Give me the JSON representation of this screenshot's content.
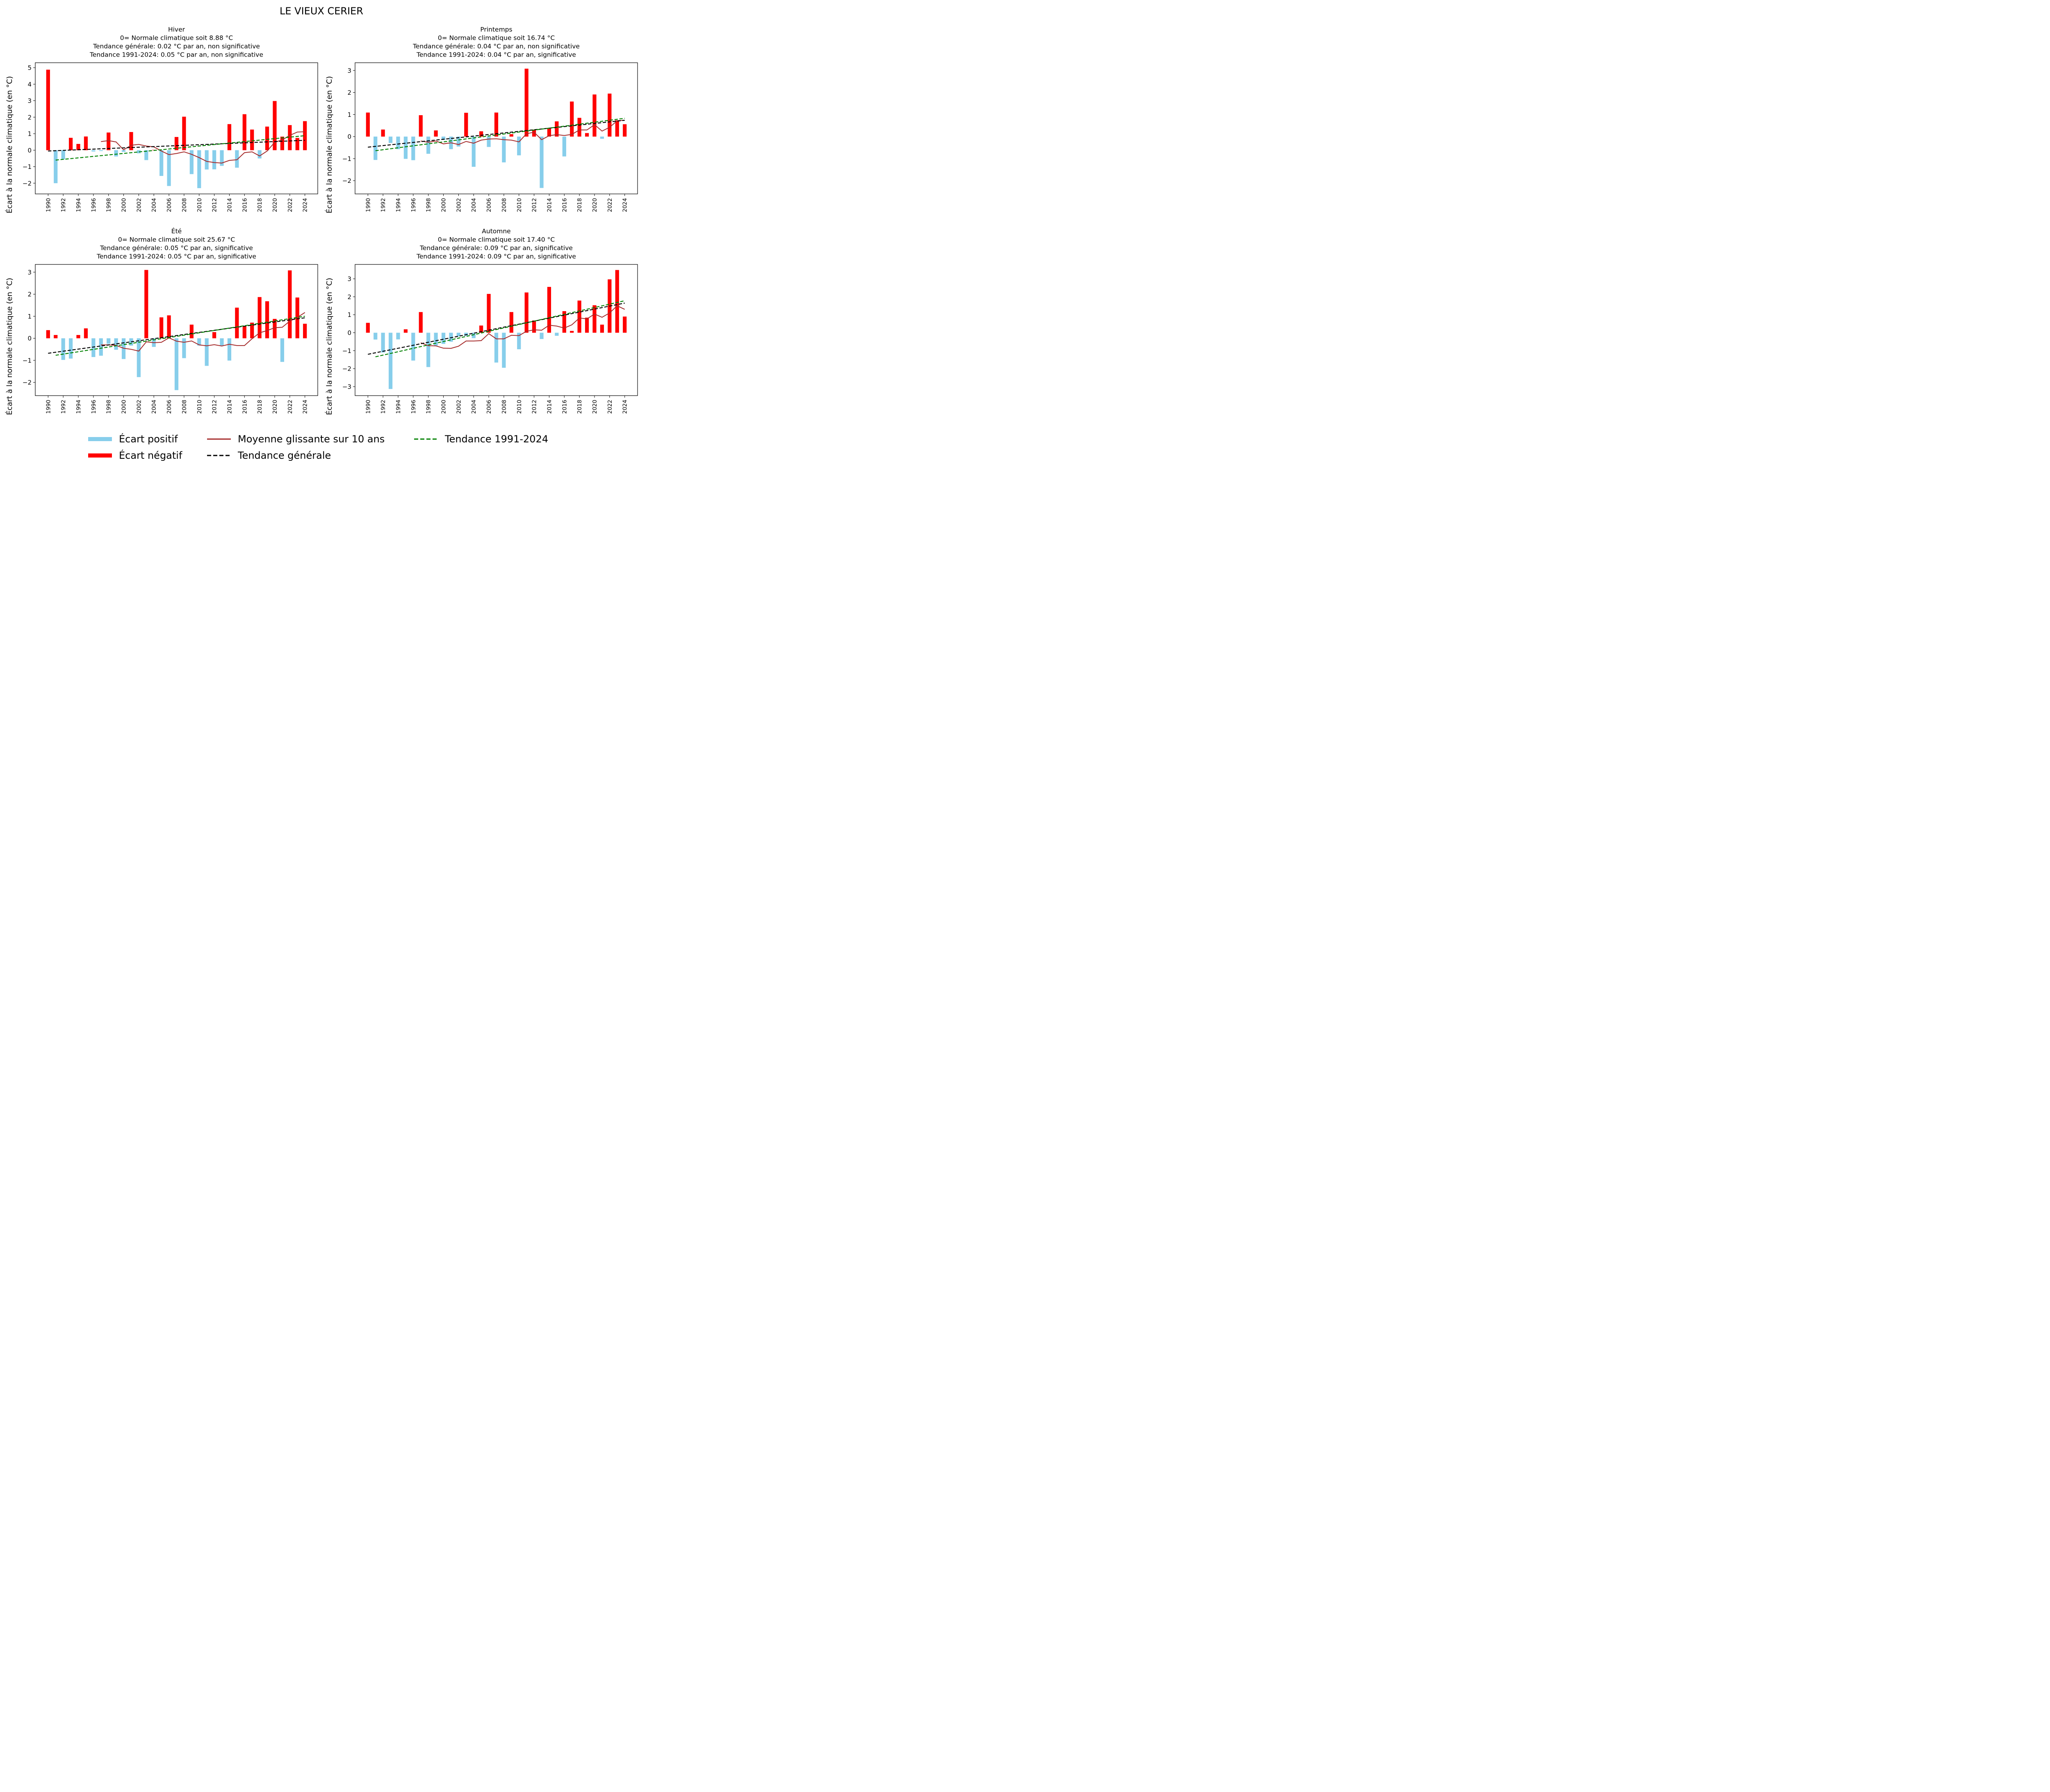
{
  "figure": {
    "suptitle": "LE VIEUX CERIER"
  },
  "colors": {
    "positive": "#87CEEB",
    "negative": "#FF0000",
    "moving_avg": "#A52A2A",
    "trend_general": "#000000",
    "trend_recent": "#008000"
  },
  "legend": {
    "items": [
      {
        "label": "Écart positif",
        "kind": "patch",
        "color": "#87CEEB"
      },
      {
        "label": "Écart négatif",
        "kind": "patch",
        "color": "#FF0000"
      },
      {
        "label": "Moyenne glissante sur 10 ans",
        "kind": "line",
        "color": "#A52A2A"
      },
      {
        "label": "Tendance générale",
        "kind": "dashed",
        "color": "#000000"
      },
      {
        "label": "Tendance 1991-2024",
        "kind": "dashed",
        "color": "#008000"
      }
    ],
    "placement": "bottom-center"
  },
  "chart_data": [
    {
      "type": "bar",
      "title": [
        "Hiver",
        "0= Normale climatique soit 8.88 °C",
        "Tendance générale: 0.02  °C par an, non significative",
        "Tendance 1991-2024: 0.05 °C par an, non significative"
      ],
      "xlabel": "",
      "ylabel": "Écart à la normale climatique (en °C)",
      "ylim": [
        -2.65,
        5.3
      ],
      "yticks": [
        -2,
        -1,
        0,
        1,
        2,
        3,
        4,
        5
      ],
      "xticks": [
        1990,
        1992,
        1994,
        1996,
        1998,
        2000,
        2002,
        2004,
        2006,
        2008,
        2010,
        2012,
        2014,
        2016,
        2018,
        2020,
        2022,
        2024
      ],
      "years": [
        1990,
        1991,
        1992,
        1993,
        1994,
        1995,
        1996,
        1997,
        1998,
        1999,
        2000,
        2001,
        2002,
        2003,
        2004,
        2005,
        2006,
        2007,
        2008,
        2009,
        2010,
        2011,
        2012,
        2013,
        2014,
        2015,
        2016,
        2017,
        2018,
        2019,
        2020,
        2021,
        2022,
        2023,
        2024
      ],
      "values": [
        4.88,
        -2.0,
        -0.55,
        0.75,
        0.38,
        0.83,
        -0.08,
        -0.05,
        1.07,
        -0.38,
        -0.1,
        1.1,
        -0.19,
        -0.6,
        0.02,
        -1.56,
        -2.17,
        0.8,
        2.03,
        -1.45,
        -2.3,
        -1.17,
        -1.16,
        -0.95,
        1.58,
        -1.06,
        2.18,
        1.25,
        -0.5,
        1.43,
        2.98,
        0.82,
        1.52,
        0.74,
        1.76
      ],
      "moving_avg": {
        "start_year": 1997,
        "values": [
          0.52,
          0.58,
          0.5,
          0.02,
          0.3,
          0.35,
          0.25,
          0.2,
          -0.05,
          -0.27,
          -0.2,
          -0.1,
          -0.25,
          -0.45,
          -0.68,
          -0.75,
          -0.78,
          -0.62,
          -0.58,
          -0.15,
          -0.1,
          -0.35,
          -0.05,
          0.48,
          0.62,
          0.9,
          1.1,
          1.12
        ]
      },
      "trend_general": {
        "x": [
          1990,
          2024
        ],
        "y": [
          -0.05,
          0.6
        ]
      },
      "trend_recent": {
        "x": [
          1991,
          2024
        ],
        "y": [
          -0.6,
          0.88
        ]
      }
    },
    {
      "type": "bar",
      "title": [
        "Printemps",
        "0= Normale climatique soit 16.74 °C",
        "Tendance générale: 0.04  °C par an, non significative",
        "Tendance 1991-2024: 0.04 °C par an, significative"
      ],
      "xlabel": "",
      "ylabel": "Écart à la normale climatique (en °C)",
      "ylim": [
        -2.6,
        3.35
      ],
      "yticks": [
        -2,
        -1,
        0,
        1,
        2,
        3
      ],
      "xticks": [
        1990,
        1992,
        1994,
        1996,
        1998,
        2000,
        2002,
        2004,
        2006,
        2008,
        2010,
        2012,
        2014,
        2016,
        2018,
        2020,
        2022,
        2024
      ],
      "years": [
        1990,
        1991,
        1992,
        1993,
        1994,
        1995,
        1996,
        1997,
        1998,
        1999,
        2000,
        2001,
        2002,
        2003,
        2004,
        2005,
        2006,
        2007,
        2008,
        2009,
        2010,
        2011,
        2012,
        2013,
        2014,
        2015,
        2016,
        2017,
        2018,
        2019,
        2020,
        2021,
        2022,
        2023,
        2024
      ],
      "values": [
        1.09,
        -1.06,
        0.32,
        -0.29,
        -0.57,
        -1.01,
        -1.07,
        0.97,
        -0.78,
        0.28,
        -0.15,
        -0.57,
        -0.45,
        1.08,
        -1.37,
        0.24,
        -0.47,
        1.09,
        -1.17,
        0.11,
        -0.85,
        3.08,
        0.32,
        -2.33,
        0.36,
        0.69,
        -0.9,
        1.59,
        0.85,
        0.16,
        1.91,
        -0.1,
        1.95,
        0.74,
        0.56
      ],
      "moving_avg": {
        "start_year": 1997,
        "values": [
          -0.2,
          -0.26,
          -0.2,
          -0.33,
          -0.28,
          -0.36,
          -0.22,
          -0.3,
          -0.16,
          -0.11,
          -0.1,
          -0.14,
          -0.16,
          -0.24,
          0.13,
          0.2,
          -0.14,
          0.04,
          0.09,
          0.05,
          0.1,
          0.3,
          0.3,
          0.54,
          0.25,
          0.42,
          0.72,
          0.74
        ]
      },
      "trend_general": {
        "x": [
          1990,
          2024
        ],
        "y": [
          -0.48,
          0.74
        ]
      },
      "trend_recent": {
        "x": [
          1991,
          2024
        ],
        "y": [
          -0.64,
          0.83
        ]
      }
    },
    {
      "type": "bar",
      "title": [
        "Été",
        "0= Normale climatique soit 25.67 °C",
        "Tendance générale: 0.05  °C par an, significative",
        "Tendance 1991-2024: 0.05 °C par an, significative"
      ],
      "xlabel": "",
      "ylabel": "Écart à la normale climatique (en °C)",
      "ylim": [
        -2.6,
        3.35
      ],
      "yticks": [
        -2,
        -1,
        0,
        1,
        2,
        3
      ],
      "xticks": [
        1990,
        1992,
        1994,
        1996,
        1998,
        2000,
        2002,
        2004,
        2006,
        2008,
        2010,
        2012,
        2014,
        2016,
        2018,
        2020,
        2022,
        2024
      ],
      "years": [
        1990,
        1991,
        1992,
        1993,
        1994,
        1995,
        1996,
        1997,
        1998,
        1999,
        2000,
        2001,
        2002,
        2003,
        2004,
        2005,
        2006,
        2007,
        2008,
        2009,
        2010,
        2011,
        2012,
        2013,
        2014,
        2015,
        2016,
        2017,
        2018,
        2019,
        2020,
        2021,
        2022,
        2023,
        2024
      ],
      "values": [
        0.37,
        0.15,
        -0.98,
        -0.92,
        0.15,
        0.45,
        -0.85,
        -0.79,
        -0.25,
        -0.52,
        -0.94,
        -0.33,
        -1.76,
        3.1,
        -0.39,
        0.95,
        1.04,
        -2.35,
        -0.9,
        0.62,
        -0.33,
        -1.25,
        0.28,
        -0.35,
        -1.01,
        1.39,
        0.55,
        0.71,
        1.87,
        1.68,
        0.88,
        -1.07,
        3.08,
        1.85,
        0.66
      ],
      "moving_avg": {
        "start_year": 1997,
        "values": [
          -0.3,
          -0.3,
          -0.32,
          -0.45,
          -0.5,
          -0.58,
          -0.16,
          -0.2,
          -0.18,
          0.02,
          -0.13,
          -0.18,
          -0.12,
          -0.3,
          -0.34,
          -0.29,
          -0.35,
          -0.27,
          -0.33,
          -0.33,
          -0.02,
          0.25,
          0.35,
          0.48,
          0.5,
          0.78,
          0.95,
          1.17
        ]
      },
      "trend_general": {
        "x": [
          1990,
          2024
        ],
        "y": [
          -0.68,
          0.93
        ]
      },
      "trend_recent": {
        "x": [
          1991,
          2024
        ],
        "y": [
          -0.77,
          1.0
        ]
      }
    },
    {
      "type": "bar",
      "title": [
        "Automne",
        "0= Normale climatique soit 17.40 °C",
        "Tendance générale: 0.09  °C par an, significative",
        "Tendance 1991-2024: 0.09 °C par an, significative"
      ],
      "xlabel": "",
      "ylabel": "Écart à la normale climatique (en °C)",
      "ylim": [
        -3.5,
        3.8
      ],
      "yticks": [
        -3,
        -2,
        -1,
        0,
        1,
        2,
        3
      ],
      "xticks": [
        1990,
        1992,
        1994,
        1996,
        1998,
        2000,
        2002,
        2004,
        2006,
        2008,
        2010,
        2012,
        2014,
        2016,
        2018,
        2020,
        2022,
        2024
      ],
      "years": [
        1990,
        1991,
        1992,
        1993,
        1994,
        1995,
        1996,
        1997,
        1998,
        1999,
        2000,
        2001,
        2002,
        2003,
        2004,
        2005,
        2006,
        2007,
        2008,
        2009,
        2010,
        2011,
        2012,
        2013,
        2014,
        2015,
        2016,
        2017,
        2018,
        2019,
        2020,
        2021,
        2022,
        2023,
        2024
      ],
      "values": [
        0.55,
        -0.38,
        -1.1,
        -3.13,
        -0.37,
        0.19,
        -1.55,
        1.15,
        -1.91,
        -0.72,
        -0.62,
        -0.5,
        -0.2,
        -0.18,
        -0.3,
        0.4,
        2.16,
        -1.66,
        -1.95,
        1.15,
        -0.92,
        2.24,
        0.68,
        -0.35,
        2.55,
        -0.17,
        1.2,
        0.1,
        1.79,
        0.84,
        1.53,
        0.45,
        2.97,
        3.49,
        0.9
      ],
      "moving_avg": {
        "start_year": 1997,
        "values": [
          -0.56,
          -0.72,
          -0.73,
          -0.86,
          -0.87,
          -0.75,
          -0.46,
          -0.46,
          -0.44,
          -0.05,
          -0.34,
          -0.34,
          -0.14,
          -0.16,
          0.08,
          0.16,
          0.14,
          0.42,
          0.37,
          0.26,
          0.44,
          0.82,
          0.77,
          1.04,
          0.86,
          1.1,
          1.5,
          1.3
        ]
      },
      "trend_general": {
        "x": [
          1990,
          2024
        ],
        "y": [
          -1.2,
          1.65
        ]
      },
      "trend_recent": {
        "x": [
          1991,
          2024
        ],
        "y": [
          -1.34,
          1.78
        ]
      }
    }
  ]
}
